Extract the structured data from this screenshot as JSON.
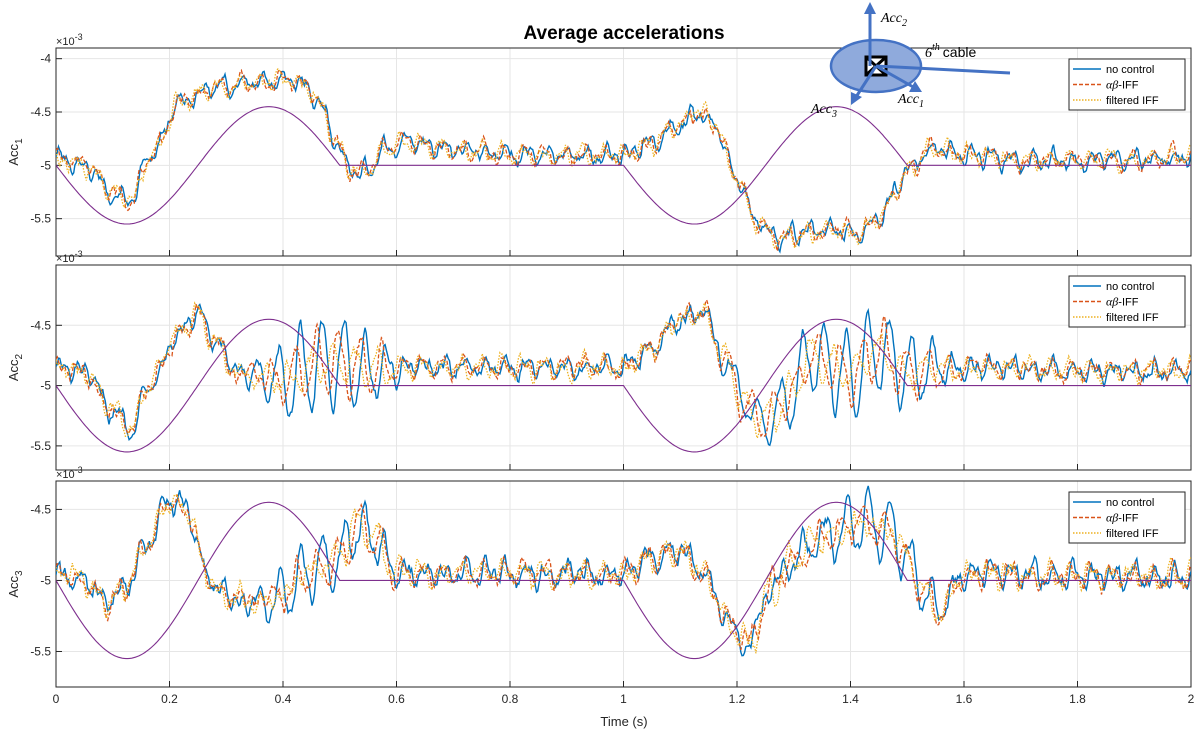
{
  "colors": {
    "reference": "#7E2F8E",
    "no_control": "#0072BD",
    "ab_iff": "#D95319",
    "filtered_iff": "#EDB120",
    "grid": "#e6e6e6",
    "axis": "#262626",
    "diagram_fill": "#8FAADC",
    "diagram_line": "#4472C4"
  },
  "chart_data": {
    "type": "line",
    "title": "Average accelerations",
    "xlabel": "Time (s)",
    "xlim": [
      0,
      2
    ],
    "xticks": [
      "0",
      "0.2",
      "0.4",
      "0.6",
      "0.8",
      "1",
      "1.2",
      "1.4",
      "1.6",
      "1.8",
      "2"
    ],
    "x_tick_values": [
      0,
      0.2,
      0.4,
      0.6,
      0.8,
      1.0,
      1.2,
      1.4,
      1.6,
      1.8,
      2.0
    ],
    "grid": true,
    "legend_position": "top-right",
    "axis_multiplier": "×10",
    "axis_multiplier_exp": "-3",
    "legend": [
      {
        "id": "no_control",
        "label": "no control",
        "style": "solid"
      },
      {
        "id": "ab_iff",
        "prefix": "αβ",
        "label": "-IFF",
        "style": "dashed"
      },
      {
        "id": "filtered_iff",
        "label": "filtered IFF",
        "style": "dotted"
      }
    ],
    "reference": {
      "shape": "two sine periods of amplitude 0.55e-3 about -5e-3, flat between",
      "center": -5.0,
      "amplitude": 0.55,
      "active_intervals": [
        [
          0,
          0.5
        ],
        [
          1.0,
          1.5
        ]
      ],
      "period": 0.5,
      "minima_at": [
        0.1,
        1.4
      ],
      "maxima_at": [
        0.4,
        1.1
      ]
    },
    "panels": [
      {
        "ylabel": "Acc",
        "ylabel_sub": "1",
        "ylim": [
          -5.85,
          -3.9
        ],
        "yticks": [
          "-4",
          "-4.5",
          "-5",
          "-5.5"
        ],
        "y_tick_values": [
          -4.0,
          -4.5,
          -5.0,
          -5.5
        ],
        "series_envelope": {
          "keypoints": [
            [
              0,
              -4.93
            ],
            [
              0.05,
              -5.0
            ],
            [
              0.1,
              -5.25
            ],
            [
              0.13,
              -5.32
            ],
            [
              0.17,
              -4.9
            ],
            [
              0.22,
              -4.4
            ],
            [
              0.28,
              -4.27
            ],
            [
              0.35,
              -4.22
            ],
            [
              0.4,
              -4.2
            ],
            [
              0.44,
              -4.25
            ],
            [
              0.47,
              -4.45
            ],
            [
              0.49,
              -4.75
            ],
            [
              0.52,
              -5.05
            ],
            [
              0.55,
              -5.05
            ],
            [
              0.58,
              -4.85
            ],
            [
              0.62,
              -4.78
            ],
            [
              0.7,
              -4.85
            ],
            [
              0.8,
              -4.9
            ],
            [
              0.9,
              -4.9
            ],
            [
              1.0,
              -4.9
            ],
            [
              1.05,
              -4.8
            ],
            [
              1.1,
              -4.62
            ],
            [
              1.13,
              -4.5
            ],
            [
              1.16,
              -4.6
            ],
            [
              1.2,
              -5.1
            ],
            [
              1.23,
              -5.5
            ],
            [
              1.27,
              -5.68
            ],
            [
              1.33,
              -5.62
            ],
            [
              1.38,
              -5.6
            ],
            [
              1.41,
              -5.65
            ],
            [
              1.45,
              -5.5
            ],
            [
              1.48,
              -5.25
            ],
            [
              1.5,
              -5.05
            ],
            [
              1.54,
              -4.85
            ],
            [
              1.6,
              -4.9
            ],
            [
              1.7,
              -4.95
            ],
            [
              1.8,
              -4.95
            ],
            [
              1.9,
              -4.95
            ],
            [
              2.0,
              -4.92
            ]
          ],
          "divergence": "low"
        }
      },
      {
        "ylabel": "Acc",
        "ylabel_sub": "2",
        "ylim": [
          -5.7,
          -4.0
        ],
        "yticks": [
          "-4.5",
          "-5",
          "-5.5"
        ],
        "y_tick_values": [
          -4.5,
          -5.0,
          -5.5
        ],
        "series_envelope": {
          "keypoints": [
            [
              0,
              -4.85
            ],
            [
              0.05,
              -4.9
            ],
            [
              0.1,
              -5.2
            ],
            [
              0.13,
              -5.35
            ],
            [
              0.17,
              -4.95
            ],
            [
              0.21,
              -4.6
            ],
            [
              0.25,
              -4.4
            ],
            [
              0.28,
              -4.65
            ],
            [
              0.32,
              -4.9
            ],
            [
              0.4,
              -4.95
            ],
            [
              0.48,
              -4.8
            ],
            [
              0.55,
              -4.85
            ],
            [
              0.62,
              -4.85
            ],
            [
              0.7,
              -4.85
            ],
            [
              0.8,
              -4.85
            ],
            [
              0.9,
              -4.85
            ],
            [
              1.0,
              -4.85
            ],
            [
              1.05,
              -4.7
            ],
            [
              1.1,
              -4.45
            ],
            [
              1.14,
              -4.4
            ],
            [
              1.18,
              -4.8
            ],
            [
              1.22,
              -5.2
            ],
            [
              1.25,
              -5.3
            ],
            [
              1.29,
              -5.1
            ],
            [
              1.33,
              -4.75
            ],
            [
              1.4,
              -4.9
            ],
            [
              1.45,
              -4.7
            ],
            [
              1.5,
              -4.9
            ],
            [
              1.55,
              -4.85
            ],
            [
              1.6,
              -4.85
            ],
            [
              1.7,
              -4.85
            ],
            [
              1.8,
              -4.88
            ],
            [
              1.9,
              -4.88
            ],
            [
              2.0,
              -4.87
            ]
          ],
          "divergence": "high"
        }
      },
      {
        "ylabel": "Acc",
        "ylabel_sub": "3",
        "ylim": [
          -5.75,
          -4.3
        ],
        "yticks": [
          "-4.5",
          "-5",
          "-5.5"
        ],
        "y_tick_values": [
          -4.5,
          -5.0,
          -5.5
        ],
        "series_envelope": {
          "keypoints": [
            [
              0,
              -4.97
            ],
            [
              0.05,
              -5.0
            ],
            [
              0.09,
              -5.15
            ],
            [
              0.12,
              -5.05
            ],
            [
              0.16,
              -4.75
            ],
            [
              0.2,
              -4.45
            ],
            [
              0.23,
              -4.5
            ],
            [
              0.27,
              -5.0
            ],
            [
              0.3,
              -5.1
            ],
            [
              0.35,
              -5.15
            ],
            [
              0.4,
              -5.1
            ],
            [
              0.44,
              -4.95
            ],
            [
              0.5,
              -4.85
            ],
            [
              0.53,
              -4.6
            ],
            [
              0.56,
              -4.7
            ],
            [
              0.6,
              -4.95
            ],
            [
              0.7,
              -4.95
            ],
            [
              0.8,
              -4.95
            ],
            [
              0.9,
              -4.95
            ],
            [
              1.0,
              -4.95
            ],
            [
              1.05,
              -4.85
            ],
            [
              1.1,
              -4.8
            ],
            [
              1.14,
              -4.95
            ],
            [
              1.19,
              -5.3
            ],
            [
              1.22,
              -5.45
            ],
            [
              1.26,
              -5.05
            ],
            [
              1.3,
              -4.85
            ],
            [
              1.35,
              -4.7
            ],
            [
              1.42,
              -4.6
            ],
            [
              1.47,
              -4.65
            ],
            [
              1.5,
              -4.85
            ],
            [
              1.53,
              -5.1
            ],
            [
              1.56,
              -5.2
            ],
            [
              1.6,
              -4.95
            ],
            [
              1.7,
              -4.95
            ],
            [
              1.8,
              -4.97
            ],
            [
              1.9,
              -4.97
            ],
            [
              2.0,
              -4.97
            ]
          ],
          "divergence": "medium"
        }
      }
    ]
  },
  "diagram": {
    "labels": {
      "acc2_base": "Acc",
      "acc2_sub": "2",
      "acc1_base": "Acc",
      "acc1_sub": "1",
      "acc3_base": "Acc",
      "acc3_sub": "3",
      "cable_num": "6",
      "cable_sup": "th",
      "cable_word": "cable"
    }
  }
}
